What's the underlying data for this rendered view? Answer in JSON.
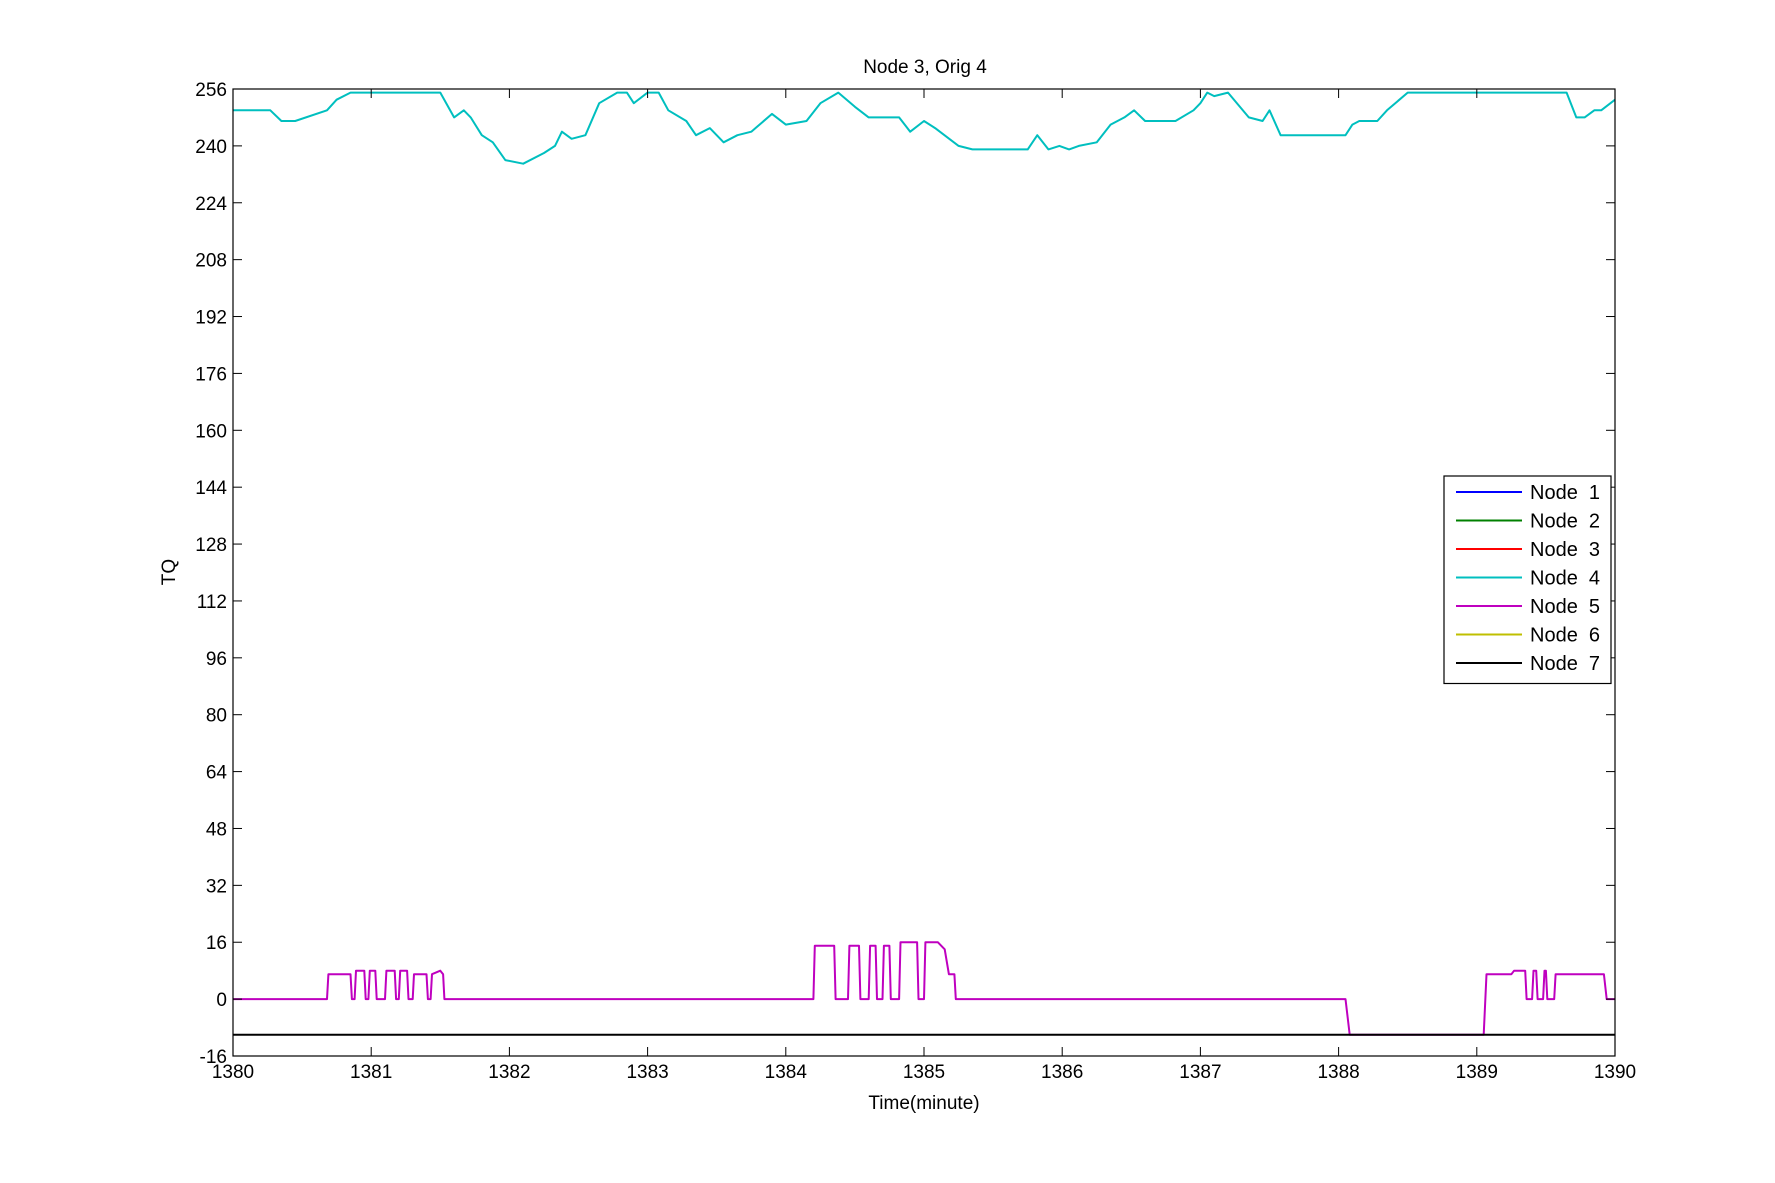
{
  "chart_data": {
    "type": "line",
    "title": "Node 3, Orig 4",
    "xlabel": "Time(minute)",
    "ylabel": "TQ",
    "xlim": [
      1380,
      1390
    ],
    "ylim": [
      -16,
      256
    ],
    "xticks": [
      1380,
      1381,
      1382,
      1383,
      1384,
      1385,
      1386,
      1387,
      1388,
      1389,
      1390
    ],
    "yticks": [
      -16,
      0,
      16,
      32,
      48,
      64,
      80,
      96,
      112,
      128,
      144,
      160,
      176,
      192,
      208,
      224,
      240,
      256
    ],
    "grid": false,
    "legend_position": "right",
    "series": [
      {
        "name": "Node  1",
        "color": "#0000ff",
        "x": [],
        "y": []
      },
      {
        "name": "Node  2",
        "color": "#008000",
        "x": [],
        "y": []
      },
      {
        "name": "Node  3",
        "color": "#ff0000",
        "x": [],
        "y": []
      },
      {
        "name": "Node  4",
        "color": "#00bfbf",
        "x": [
          1380,
          1380.27,
          1380.35,
          1380.45,
          1380.68,
          1380.75,
          1380.85,
          1381.5,
          1381.6,
          1381.67,
          1381.72,
          1381.8,
          1381.88,
          1381.97,
          1382.1,
          1382.25,
          1382.33,
          1382.38,
          1382.45,
          1382.55,
          1382.65,
          1382.78,
          1382.85,
          1382.9,
          1383.0,
          1383.08,
          1383.15,
          1383.28,
          1383.35,
          1383.45,
          1383.55,
          1383.65,
          1383.75,
          1383.9,
          1384.0,
          1384.15,
          1384.25,
          1384.38,
          1384.5,
          1384.6,
          1384.82,
          1384.9,
          1385.0,
          1385.08,
          1385.25,
          1385.35,
          1385.75,
          1385.82,
          1385.9,
          1385.98,
          1386.05,
          1386.12,
          1386.25,
          1386.35,
          1386.45,
          1386.52,
          1386.6,
          1386.82,
          1386.95,
          1387.0,
          1387.05,
          1387.1,
          1387.2,
          1387.35,
          1387.45,
          1387.5,
          1387.58,
          1387.85,
          1388.05,
          1388.1,
          1388.15,
          1388.28,
          1388.35,
          1388.5,
          1389.0,
          1389.5,
          1389.65,
          1389.72,
          1389.78,
          1389.85,
          1389.9,
          1390
        ],
        "y": [
          250,
          250,
          247,
          247,
          250,
          253,
          255,
          255,
          248,
          250,
          248,
          243,
          241,
          236,
          235,
          238,
          240,
          244,
          242,
          243,
          252,
          255,
          255,
          252,
          255,
          255,
          250,
          247,
          243,
          245,
          241,
          243,
          244,
          249,
          246,
          247,
          252,
          255,
          251,
          248,
          248,
          244,
          247,
          245,
          240,
          239,
          239,
          243,
          239,
          240,
          239,
          240,
          241,
          246,
          248,
          250,
          247,
          247,
          250,
          252,
          255,
          254,
          255,
          248,
          247,
          250,
          243,
          243,
          243,
          246,
          247,
          247,
          250,
          255,
          255,
          255,
          255,
          248,
          248,
          250,
          250,
          253
        ]
      },
      {
        "name": "Node  5",
        "color": "#bf00bf",
        "x": [
          1380,
          1380.68,
          1380.69,
          1380.85,
          1380.86,
          1380.88,
          1380.89,
          1380.95,
          1380.96,
          1380.98,
          1380.99,
          1381.03,
          1381.04,
          1381.1,
          1381.11,
          1381.17,
          1381.18,
          1381.2,
          1381.21,
          1381.26,
          1381.27,
          1381.3,
          1381.31,
          1381.4,
          1381.41,
          1381.43,
          1381.44,
          1381.5,
          1381.52,
          1381.53,
          1384.2,
          1384.21,
          1384.35,
          1384.36,
          1384.45,
          1384.46,
          1384.53,
          1384.54,
          1384.6,
          1384.61,
          1384.65,
          1384.66,
          1384.7,
          1384.71,
          1384.75,
          1384.76,
          1384.82,
          1384.83,
          1384.95,
          1384.96,
          1385.0,
          1385.01,
          1385.1,
          1385.15,
          1385.18,
          1385.22,
          1385.23,
          1388.05,
          1388.08,
          1389.05,
          1389.07,
          1389.25,
          1389.27,
          1389.35,
          1389.36,
          1389.4,
          1389.41,
          1389.43,
          1389.44,
          1389.48,
          1389.49,
          1389.5,
          1389.51,
          1389.56,
          1389.57,
          1389.61,
          1389.62,
          1389.92,
          1389.94,
          1390
        ],
        "y": [
          0,
          0,
          7,
          7,
          0,
          0,
          8,
          8,
          0,
          0,
          8,
          8,
          0,
          0,
          8,
          8,
          0,
          0,
          8,
          8,
          0,
          0,
          7,
          7,
          0,
          0,
          7,
          8,
          7,
          0,
          0,
          15,
          15,
          0,
          0,
          15,
          15,
          0,
          0,
          15,
          15,
          0,
          0,
          15,
          15,
          0,
          0,
          16,
          16,
          0,
          0,
          16,
          16,
          14,
          7,
          7,
          0,
          0,
          -10,
          -10,
          7,
          7,
          8,
          8,
          0,
          0,
          8,
          8,
          0,
          0,
          8,
          8,
          0,
          0,
          7,
          7,
          7,
          7,
          0,
          0
        ]
      },
      {
        "name": "Node  6",
        "color": "#bfbf00",
        "x": [],
        "y": []
      },
      {
        "name": "Node  7",
        "color": "#000000",
        "x": [
          1380,
          1390
        ],
        "y": [
          -10,
          -10
        ]
      }
    ]
  }
}
